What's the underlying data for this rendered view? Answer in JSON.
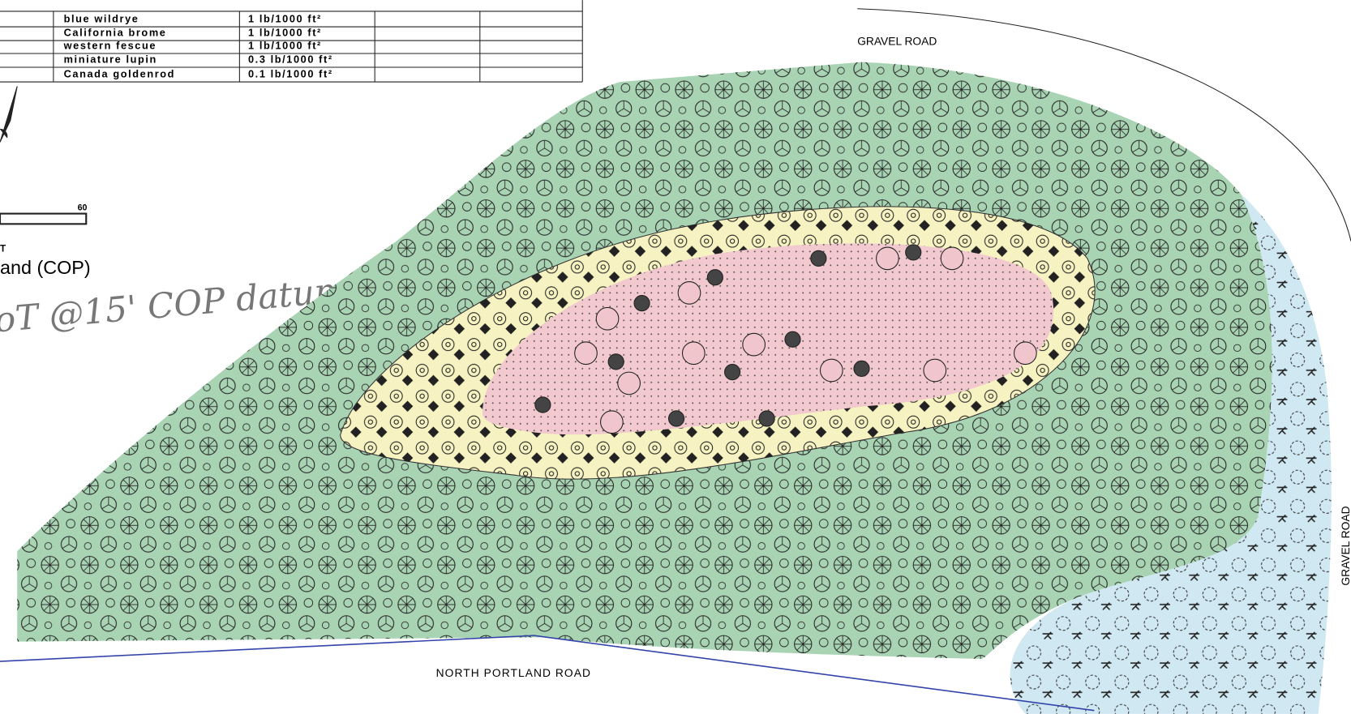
{
  "seed_table": {
    "rows": [
      [
        "blue wildrye",
        "1 lb/1000 ft²"
      ],
      [
        "California brome",
        "1 lb/1000 ft²"
      ],
      [
        "western fescue",
        "1 lb/1000 ft²"
      ],
      [
        "miniature lupin",
        "0.3 lb/1000 ft²"
      ],
      [
        "Canada goldenrod",
        "0.1 lb/1000 ft²"
      ]
    ]
  },
  "scale_bar": {
    "label": "60",
    "unit": "T"
  },
  "caption": "and (COP)",
  "handwritten_note": "oT @15' COP datum",
  "roads": {
    "top": "GRAVEL ROAD",
    "bottom": "NORTH PORTLAND ROAD",
    "right": "GRAVEL ROAD"
  }
}
